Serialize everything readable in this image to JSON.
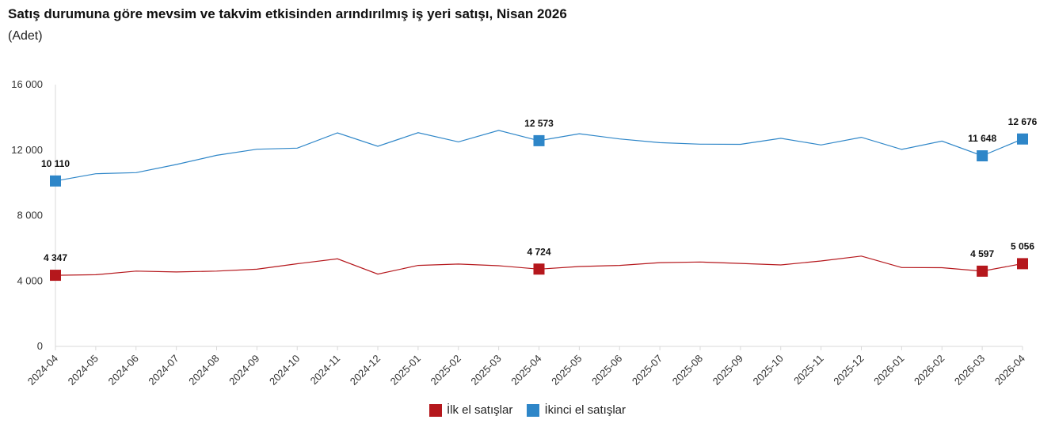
{
  "title": "Satış durumuna göre mevsim ve takvim etkisinden arındırılmış iş yeri satışı, Nisan 2026",
  "subtitle": "(Adet)",
  "chart_data": {
    "type": "line",
    "ylim": [
      0,
      16000
    ],
    "yticks": [
      0,
      4000,
      8000,
      12000,
      16000
    ],
    "ytick_labels": [
      "0",
      "4 000",
      "8 000",
      "12 000",
      "16 000"
    ],
    "categories": [
      "2024-04",
      "2024-05",
      "2024-06",
      "2024-07",
      "2024-08",
      "2024-09",
      "2024-10",
      "2024-11",
      "2024-12",
      "2025-01",
      "2025-02",
      "2025-03",
      "2025-04",
      "2025-05",
      "2025-06",
      "2025-07",
      "2025-08",
      "2025-09",
      "2025-10",
      "2025-11",
      "2025-12",
      "2026-01",
      "2026-02",
      "2026-03",
      "2026-04"
    ],
    "grid": false,
    "legend_position": "bottom",
    "series": [
      {
        "name": "İlk el satışlar",
        "color": "#b5171c",
        "values": [
          4347,
          4380,
          4600,
          4550,
          4600,
          4720,
          5050,
          5350,
          4420,
          4950,
          5030,
          4930,
          4724,
          4880,
          4950,
          5120,
          5160,
          5070,
          4980,
          5220,
          5520,
          4820,
          4810,
          4597,
          5056
        ],
        "labels": [
          {
            "index": 0,
            "text": "4 347"
          },
          {
            "index": 12,
            "text": "4 724"
          },
          {
            "index": 23,
            "text": "4 597"
          },
          {
            "index": 24,
            "text": "5 056"
          }
        ]
      },
      {
        "name": "İkinci el satışlar",
        "color": "#2e86c8",
        "values": [
          10110,
          10550,
          10620,
          11120,
          11680,
          12050,
          12120,
          13050,
          12230,
          13060,
          12500,
          13200,
          12573,
          13000,
          12680,
          12450,
          12360,
          12350,
          12720,
          12310,
          12780,
          12040,
          12550,
          11648,
          12676
        ],
        "labels": [
          {
            "index": 0,
            "text": "10 110"
          },
          {
            "index": 12,
            "text": "12 573"
          },
          {
            "index": 23,
            "text": "11 648"
          },
          {
            "index": 24,
            "text": "12 676"
          }
        ]
      }
    ]
  }
}
